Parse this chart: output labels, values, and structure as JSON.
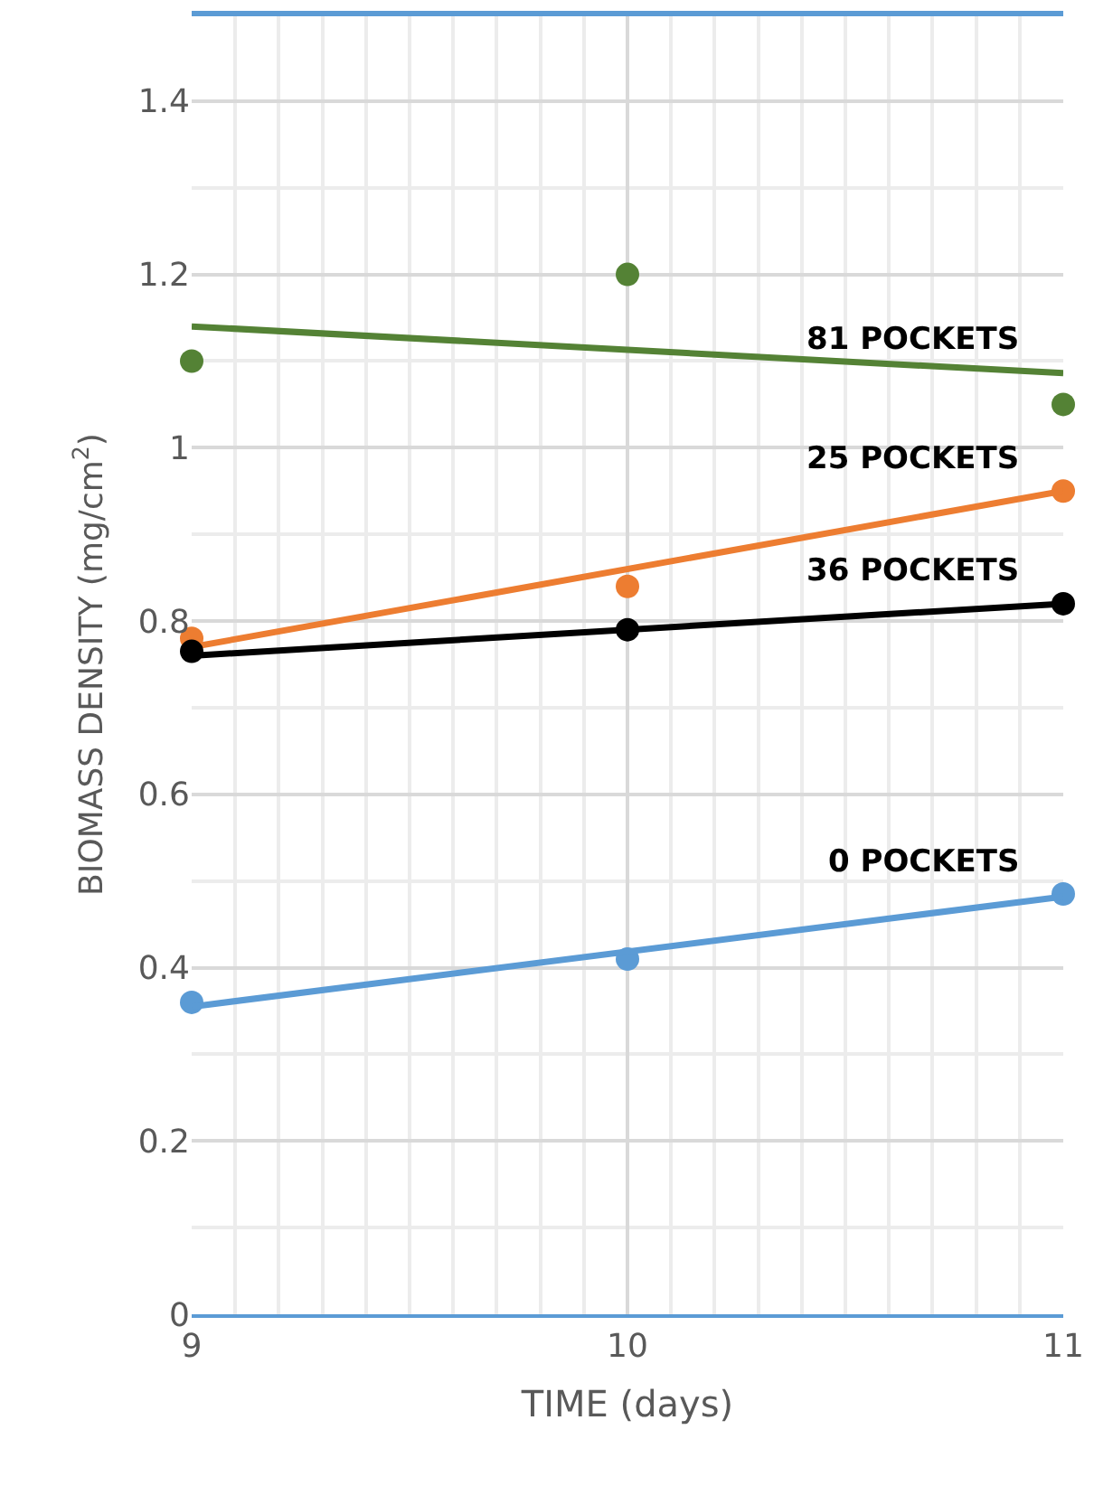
{
  "chart_data": {
    "type": "scatter",
    "xlabel": "TIME (days)",
    "ylabel": "BIOMASS DENSITY (mg/cm$^{2}$)",
    "xlim": [
      9,
      11
    ],
    "xticks": [
      9,
      10,
      11
    ],
    "ylim": [
      0,
      1.5
    ],
    "yticks": [
      0,
      0.2,
      0.4,
      0.6,
      0.8,
      1,
      1.2,
      1.4
    ],
    "grid": true,
    "marker": "circle",
    "legend": false,
    "series": [
      {
        "name": "81 POCKETS",
        "color": "#548235",
        "x": [
          9,
          10,
          11
        ],
        "values": [
          1.1,
          1.2,
          1.05
        ]
      },
      {
        "type": "line",
        "marker": "none",
        "color": "#548235",
        "x": [
          9,
          11
        ],
        "values": [
          1.14,
          1.086
        ]
      },
      {
        "name": "25 POCKETS",
        "color": "#ed7d31",
        "x": [
          9,
          10,
          11
        ],
        "values": [
          0.78,
          0.84,
          0.95
        ]
      },
      {
        "type": "line",
        "marker": "none",
        "color": "#ed7d31",
        "x": [
          9,
          11
        ],
        "values": [
          0.77,
          0.95
        ]
      },
      {
        "name": "36 POCKETS",
        "color": "#000000",
        "x": [
          9,
          10,
          11
        ],
        "values": [
          0.765,
          0.79,
          0.82
        ]
      },
      {
        "type": "line",
        "marker": "none",
        "color": "#000000",
        "x": [
          9,
          11
        ],
        "values": [
          0.76,
          0.82
        ]
      },
      {
        "name": "0 POCKETS",
        "color": "#5b9bd5",
        "x": [
          9,
          10,
          11
        ],
        "values": [
          0.36,
          0.41,
          0.485
        ]
      },
      {
        "type": "line",
        "marker": "none",
        "color": "#5b9bd5",
        "x": [
          9,
          11
        ],
        "values": [
          0.355,
          0.482
        ]
      }
    ]
  }
}
